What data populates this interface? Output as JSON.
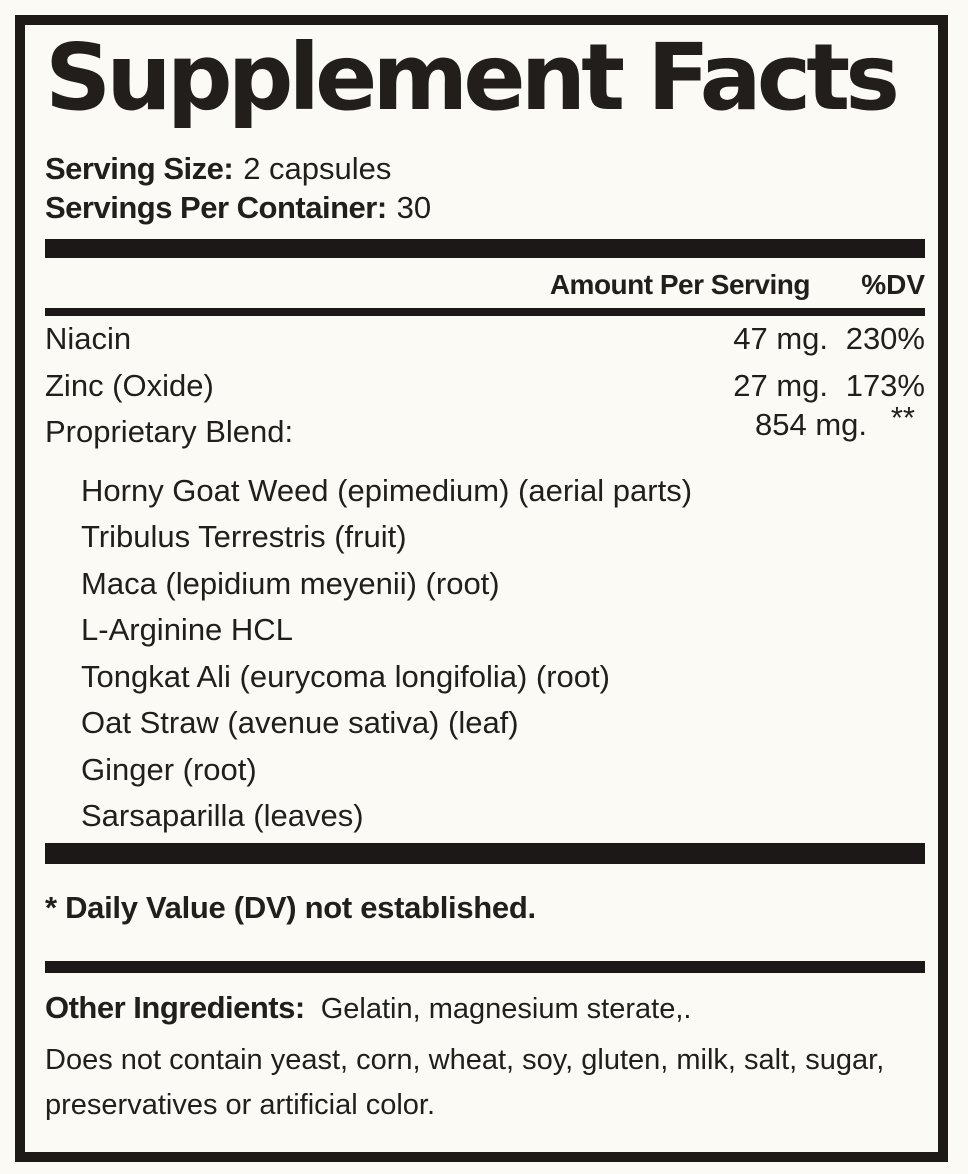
{
  "label": {
    "title": "Supplement Facts",
    "serving": {
      "size_label": "Serving Size:",
      "size_value": "2 capsules",
      "per_container_label": "Servings Per Container:",
      "per_container_value": "30"
    },
    "columns": {
      "amount_header": "Amount Per Serving",
      "dv_header": "%DV"
    },
    "nutrients": [
      {
        "name": "Niacin",
        "amount": "47 mg.",
        "dv": "230%"
      },
      {
        "name": "Zinc (Oxide)",
        "amount": "27 mg.",
        "dv": "173%"
      }
    ],
    "blend": {
      "name": "Proprietary Blend:",
      "amount": "854 mg.",
      "dv": "**"
    },
    "blend_ingredients": [
      "Horny Goat Weed (epimedium) (aerial parts)",
      "Tribulus Terrestris (fruit)",
      "Maca (lepidium meyenii) (root)",
      "L-Arginine HCL",
      "Tongkat Ali (eurycoma longifolia) (root)",
      "Oat Straw (avenue sativa) (leaf)",
      "Ginger (root)",
      "Sarsaparilla (leaves)"
    ],
    "footnote": "* Daily Value (DV) not established.",
    "other_ingredients": {
      "label": "Other Ingredients:",
      "value": "Gelatin, magnesium sterate,."
    },
    "disclaimer_lines": [
      "Does not contain yeast, corn, wheat, soy, gluten, milk, salt, sugar,",
      "preservatives or artificial color."
    ],
    "colors": {
      "background": "#fbfaf5",
      "ink": "#211e1c",
      "bar": "#1b1817"
    }
  }
}
